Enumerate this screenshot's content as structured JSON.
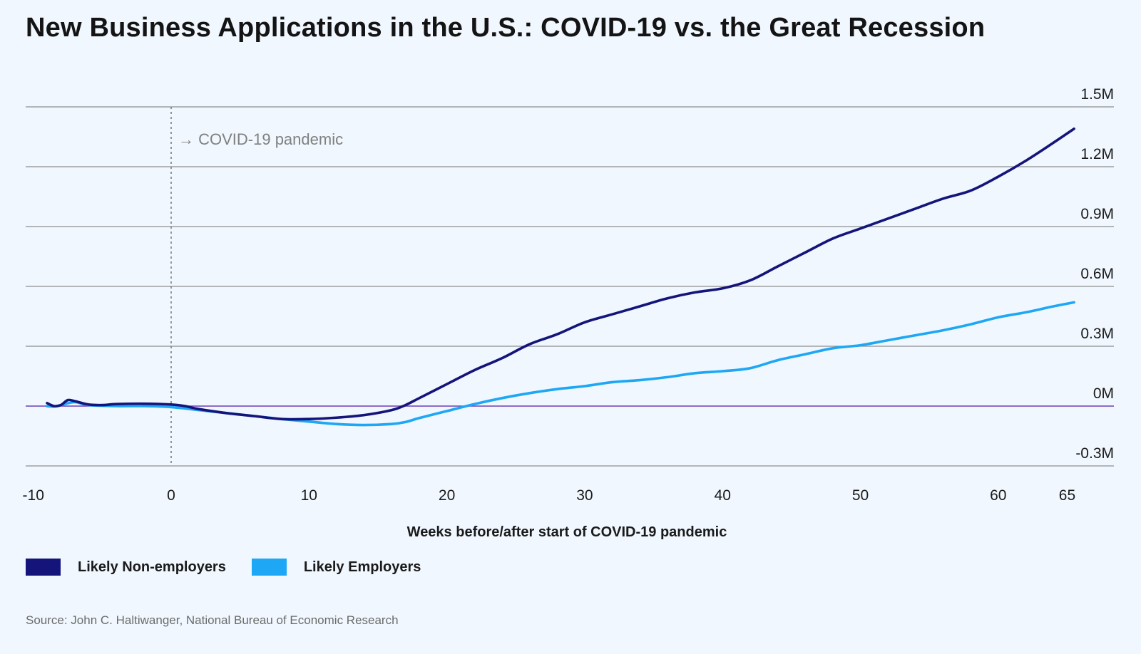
{
  "title": "New Business Applications in the U.S.: COVID-19 vs. the Great Recession",
  "source": "Source: John C. Haltiwanger, National Bureau of Economic Research",
  "colors": {
    "non_employers": "#14147a",
    "employers": "#1ea7f5",
    "zero_line": "#6a3fb5",
    "grid": "#8e8e8e",
    "annotation": "#808080"
  },
  "chart_data": {
    "type": "line",
    "title": "New Business Applications in the U.S.: COVID-19 vs. the Great Recession",
    "xlabel": "Weeks before/after start of COVID-19 pandemic",
    "ylabel": "",
    "xlim": [
      -10,
      65
    ],
    "ylim": [
      -0.3,
      1.5
    ],
    "x_ticks": [
      -10,
      0,
      10,
      20,
      30,
      40,
      50,
      60,
      65
    ],
    "y_ticks": [
      {
        "value": 1.5,
        "label": "1.5M"
      },
      {
        "value": 1.2,
        "label": "1.2M"
      },
      {
        "value": 0.9,
        "label": "0.9M"
      },
      {
        "value": 0.6,
        "label": "0.6M"
      },
      {
        "value": 0.3,
        "label": "0.3M"
      },
      {
        "value": 0,
        "label": "0M"
      },
      {
        "value": -0.3,
        "label": "-0.3M"
      }
    ],
    "grid": true,
    "legend_position": "bottom-left",
    "annotation": {
      "x": 0,
      "text": "→ COVID-19 pandemic"
    },
    "series": [
      {
        "name": "Likely Non-employers",
        "color": "#14147a",
        "points": [
          [
            -9,
            0.015
          ],
          [
            -8.5,
            0.0
          ],
          [
            -8,
            0.005
          ],
          [
            -7.5,
            0.03
          ],
          [
            -7,
            0.025
          ],
          [
            -6,
            0.008
          ],
          [
            -5,
            0.005
          ],
          [
            -4,
            0.01
          ],
          [
            -2,
            0.012
          ],
          [
            0,
            0.008
          ],
          [
            1,
            0.0
          ],
          [
            2,
            -0.015
          ],
          [
            4,
            -0.035
          ],
          [
            6,
            -0.05
          ],
          [
            8,
            -0.065
          ],
          [
            10,
            -0.065
          ],
          [
            12,
            -0.058
          ],
          [
            14,
            -0.045
          ],
          [
            16,
            -0.02
          ],
          [
            17,
            0.005
          ],
          [
            18,
            0.04
          ],
          [
            20,
            0.11
          ],
          [
            22,
            0.18
          ],
          [
            24,
            0.24
          ],
          [
            26,
            0.31
          ],
          [
            28,
            0.36
          ],
          [
            30,
            0.42
          ],
          [
            32,
            0.46
          ],
          [
            34,
            0.5
          ],
          [
            36,
            0.54
          ],
          [
            38,
            0.57
          ],
          [
            40,
            0.59
          ],
          [
            42,
            0.63
          ],
          [
            44,
            0.7
          ],
          [
            46,
            0.77
          ],
          [
            48,
            0.84
          ],
          [
            50,
            0.89
          ],
          [
            52,
            0.94
          ],
          [
            54,
            0.99
          ],
          [
            56,
            1.04
          ],
          [
            58,
            1.08
          ],
          [
            60,
            1.15
          ],
          [
            62,
            1.23
          ],
          [
            64,
            1.32
          ],
          [
            65.5,
            1.39
          ]
        ]
      },
      {
        "name": "Likely Employers",
        "color": "#1ea7f5",
        "points": [
          [
            -9,
            0.0
          ],
          [
            -8.5,
            -0.002
          ],
          [
            -8,
            0.005
          ],
          [
            -7,
            0.02
          ],
          [
            -6,
            0.005
          ],
          [
            -4,
            0.0
          ],
          [
            -2,
            0.0
          ],
          [
            0,
            -0.005
          ],
          [
            2,
            -0.02
          ],
          [
            4,
            -0.035
          ],
          [
            6,
            -0.05
          ],
          [
            8,
            -0.065
          ],
          [
            10,
            -0.078
          ],
          [
            12,
            -0.09
          ],
          [
            14,
            -0.095
          ],
          [
            16,
            -0.09
          ],
          [
            17,
            -0.08
          ],
          [
            18,
            -0.06
          ],
          [
            20,
            -0.025
          ],
          [
            22,
            0.01
          ],
          [
            24,
            0.04
          ],
          [
            26,
            0.065
          ],
          [
            28,
            0.085
          ],
          [
            30,
            0.1
          ],
          [
            32,
            0.12
          ],
          [
            34,
            0.13
          ],
          [
            36,
            0.145
          ],
          [
            38,
            0.165
          ],
          [
            40,
            0.175
          ],
          [
            42,
            0.19
          ],
          [
            44,
            0.23
          ],
          [
            46,
            0.26
          ],
          [
            48,
            0.29
          ],
          [
            50,
            0.305
          ],
          [
            52,
            0.33
          ],
          [
            54,
            0.355
          ],
          [
            56,
            0.38
          ],
          [
            58,
            0.41
          ],
          [
            60,
            0.445
          ],
          [
            62,
            0.47
          ],
          [
            64,
            0.5
          ],
          [
            65.5,
            0.52
          ]
        ]
      }
    ]
  }
}
